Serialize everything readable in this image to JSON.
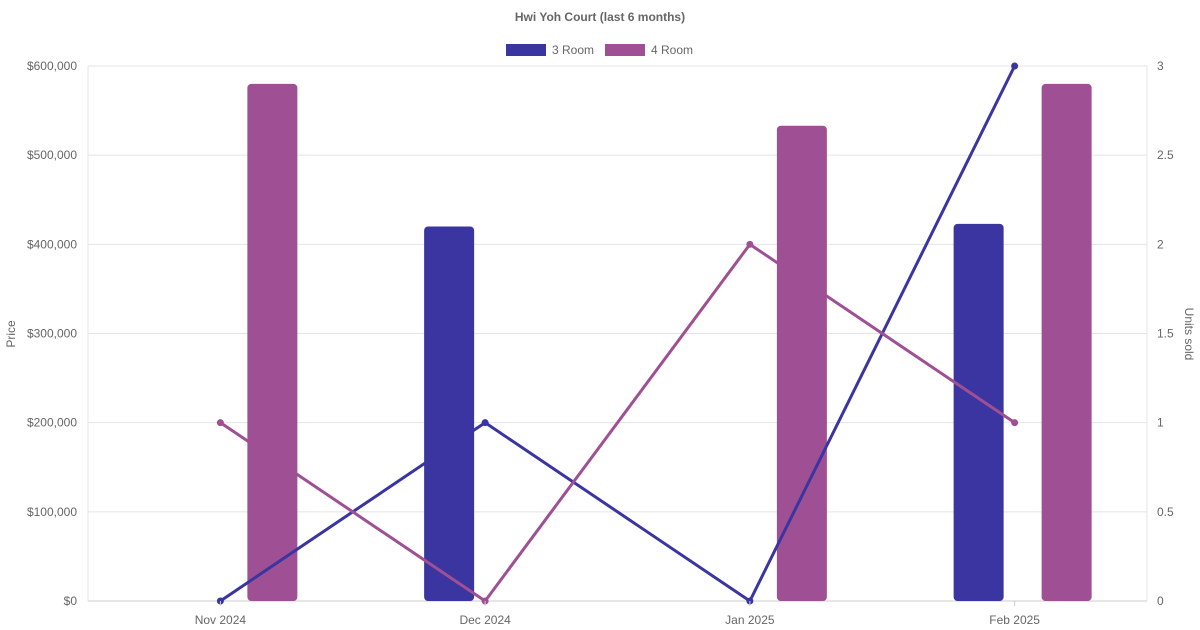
{
  "chart_data": {
    "type": "bar",
    "title": "Hwi Yoh Court (last 6 months)",
    "categories": [
      "Nov 2024",
      "Dec 2024",
      "Jan 2025",
      "Feb 2025"
    ],
    "y_left": {
      "label": "Price",
      "range": [
        0,
        600000
      ],
      "ticks": [
        "$0",
        "$100,000",
        "$200,000",
        "$300,000",
        "$400,000",
        "$500,000",
        "$600,000"
      ]
    },
    "y_right": {
      "label": "Units sold",
      "range": [
        0,
        3
      ],
      "ticks": [
        "0",
        "0.5",
        "1",
        "1.5",
        "2",
        "2.5",
        "3"
      ]
    },
    "series": [
      {
        "name": "3 Room",
        "color": "#3a35a0",
        "bar_values": [
          null,
          420000,
          null,
          423000
        ],
        "line_values": [
          0,
          1,
          0,
          3
        ]
      },
      {
        "name": "4 Room",
        "color": "#9f5094",
        "bar_values": [
          580000,
          null,
          533000,
          580000
        ],
        "line_values": [
          1,
          0,
          2,
          1
        ]
      }
    ],
    "grid": true,
    "legend_position": "top-center"
  }
}
